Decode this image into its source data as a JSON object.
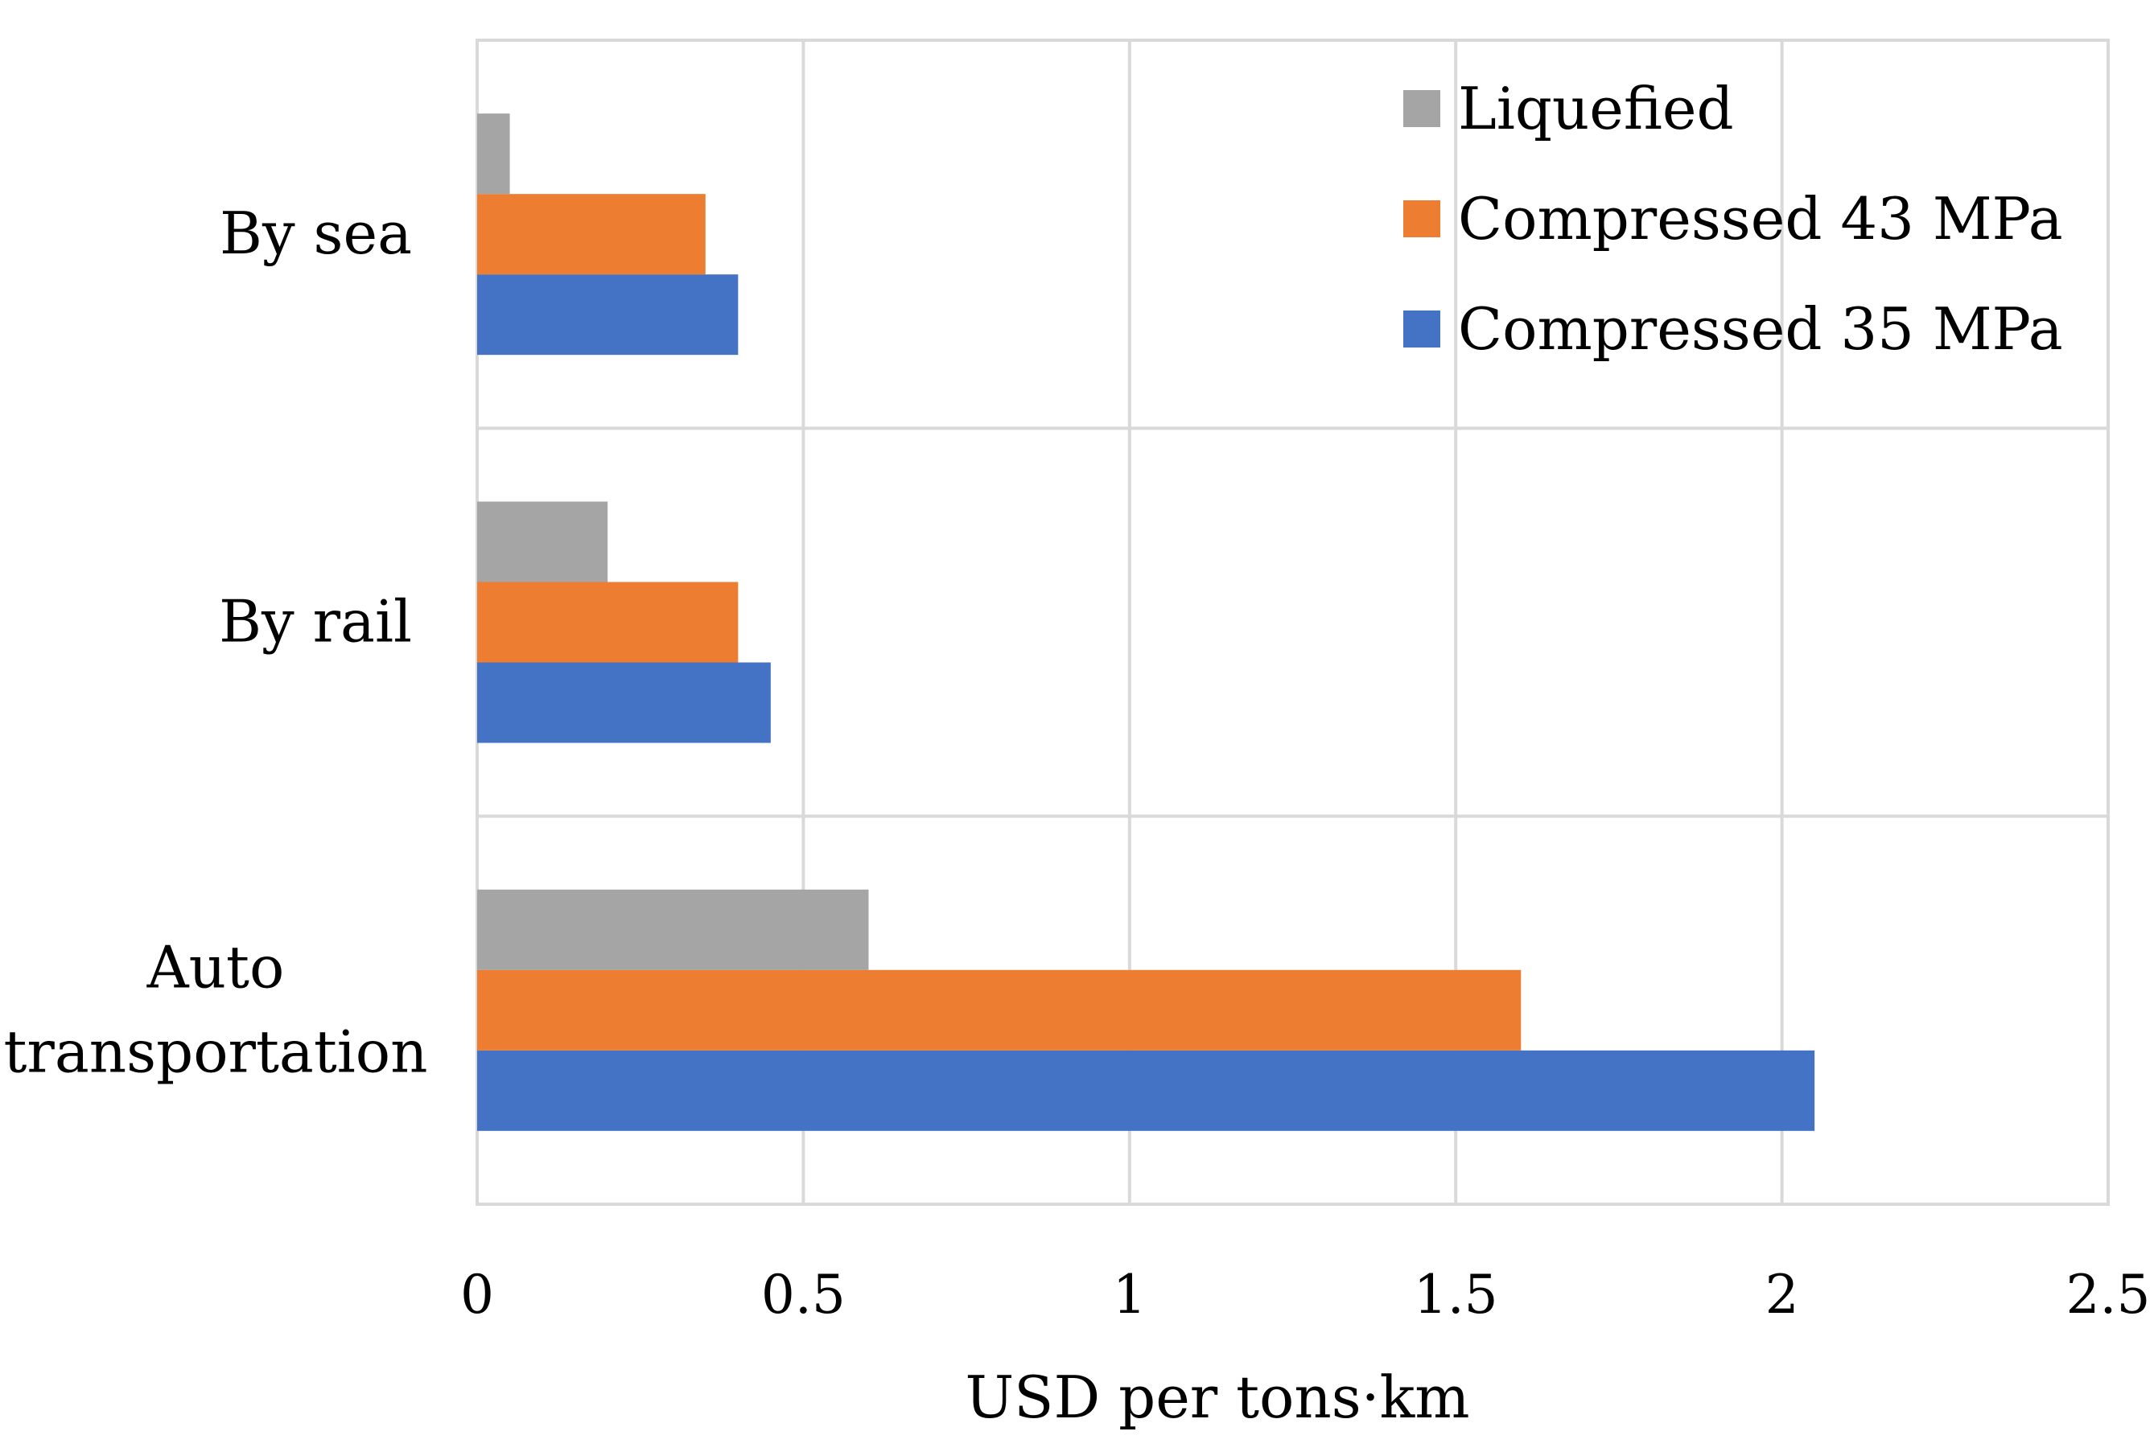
{
  "chart_data": {
    "type": "bar",
    "orientation": "horizontal",
    "categories": [
      "Auto transportation",
      "By rail",
      "By sea"
    ],
    "category_label_lines": [
      [
        "Auto",
        "transportation"
      ],
      [
        "By rail"
      ],
      [
        "By sea"
      ]
    ],
    "series": [
      {
        "name": "Compressed 35 MPa",
        "color": "#4472C4",
        "values": [
          2.05,
          0.45,
          0.4
        ]
      },
      {
        "name": "Compressed 43 MPa",
        "color": "#ED7D31",
        "values": [
          1.6,
          0.4,
          0.35
        ]
      },
      {
        "name": "Liquefied",
        "color": "#A5A5A5",
        "values": [
          0.6,
          0.2,
          0.05
        ]
      }
    ],
    "legend_order": [
      2,
      1,
      0
    ],
    "xlabel": "USD per tons·km",
    "ylabel": "",
    "xlim": [
      0,
      2.5
    ],
    "xticks": [
      "0",
      "0.5",
      "1",
      "1.5",
      "2",
      "2.5"
    ],
    "grid": true,
    "legend_position": "top-right"
  }
}
